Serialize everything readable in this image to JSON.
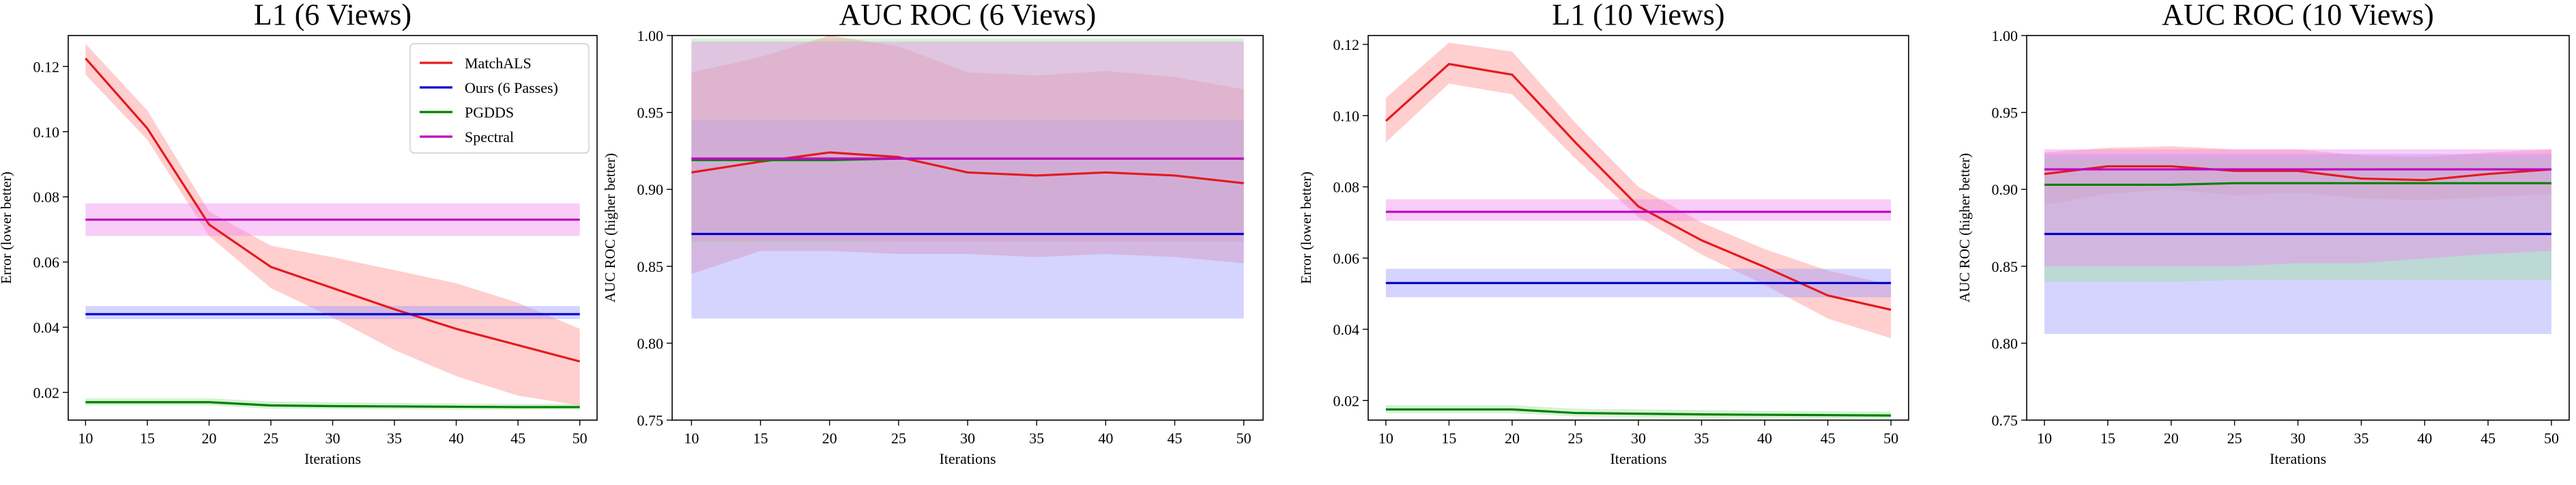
{
  "chart_data": [
    {
      "type": "line",
      "title": "L1 (6 Views)",
      "xlabel": "Iterations",
      "ylabel": "Error (lower better)",
      "x": [
        10,
        15,
        20,
        25,
        30,
        35,
        40,
        45,
        50
      ],
      "xlim": [
        8.6,
        51.4
      ],
      "ylim": [
        0.0115,
        0.1295
      ],
      "xticks": [
        10,
        15,
        20,
        25,
        30,
        35,
        40,
        45,
        50
      ],
      "yticks": [
        "0.02",
        "0.04",
        "0.06",
        "0.08",
        "0.10",
        "0.12"
      ],
      "legend": "top-right",
      "series": [
        {
          "name": "MatchALS",
          "color": "#e41a1c",
          "band_color": "#ff8a8a",
          "values": [
            0.1225,
            0.101,
            0.0715,
            0.0585,
            0.052,
            0.0455,
            0.0395,
            0.0345,
            0.0295
          ],
          "lower": [
            0.1175,
            0.0975,
            0.068,
            0.052,
            0.043,
            0.033,
            0.025,
            0.019,
            0.016
          ],
          "upper": [
            0.127,
            0.1065,
            0.0755,
            0.065,
            0.0615,
            0.0575,
            0.0535,
            0.0475,
            0.0395
          ]
        },
        {
          "name": "Ours (6 Passes)",
          "color": "#0000cc",
          "band_color": "#9999ff",
          "values": [
            0.044,
            0.044,
            0.044,
            0.044,
            0.044,
            0.044,
            0.044,
            0.044,
            0.044
          ],
          "lower": [
            0.0425,
            0.0425,
            0.0425,
            0.0425,
            0.0425,
            0.0425,
            0.0425,
            0.0425,
            0.0425
          ],
          "upper": [
            0.0465,
            0.0465,
            0.0465,
            0.0465,
            0.0465,
            0.0465,
            0.0465,
            0.0465,
            0.0465
          ]
        },
        {
          "name": "PGDDS",
          "color": "#008000",
          "band_color": "#9be09b",
          "values": [
            0.017,
            0.017,
            0.017,
            0.016,
            0.0158,
            0.0157,
            0.0156,
            0.0155,
            0.0155
          ],
          "lower": [
            0.016,
            0.016,
            0.016,
            0.015,
            0.0149,
            0.0148,
            0.0147,
            0.0147,
            0.0147
          ],
          "upper": [
            0.0182,
            0.0182,
            0.0182,
            0.0172,
            0.017,
            0.0168,
            0.0166,
            0.0165,
            0.0165
          ]
        },
        {
          "name": "Spectral",
          "color": "#c000c0",
          "band_color": "#ee88ee",
          "values": [
            0.073,
            0.073,
            0.073,
            0.073,
            0.073,
            0.073,
            0.073,
            0.073,
            0.073
          ],
          "lower": [
            0.068,
            0.068,
            0.068,
            0.068,
            0.068,
            0.068,
            0.068,
            0.068,
            0.068
          ],
          "upper": [
            0.078,
            0.078,
            0.078,
            0.078,
            0.078,
            0.078,
            0.078,
            0.078,
            0.078
          ]
        }
      ]
    },
    {
      "type": "line",
      "title": "AUC ROC (6 Views)",
      "xlabel": "Iterations",
      "ylabel": "AUC ROC (higher better)",
      "x": [
        10,
        15,
        20,
        25,
        30,
        35,
        40,
        45,
        50
      ],
      "xlim": [
        8.6,
        51.4
      ],
      "ylim": [
        0.75,
        1.0
      ],
      "xticks": [
        10,
        15,
        20,
        25,
        30,
        35,
        40,
        45,
        50
      ],
      "yticks": [
        "0.75",
        "0.80",
        "0.85",
        "0.90",
        "0.95",
        "1.00"
      ],
      "series": [
        {
          "name": "MatchALS",
          "color": "#e41a1c",
          "band_color": "#ff8a8a",
          "values": [
            0.911,
            0.918,
            0.924,
            0.921,
            0.911,
            0.909,
            0.911,
            0.909,
            0.904
          ],
          "lower": [
            0.845,
            0.86,
            0.86,
            0.858,
            0.858,
            0.856,
            0.858,
            0.856,
            0.852
          ],
          "upper": [
            0.976,
            0.986,
            1.0,
            0.993,
            0.976,
            0.974,
            0.977,
            0.973,
            0.965
          ]
        },
        {
          "name": "Ours (6 Passes)",
          "color": "#0000cc",
          "band_color": "#9999ff",
          "values": [
            0.871,
            0.871,
            0.871,
            0.871,
            0.871,
            0.871,
            0.871,
            0.871,
            0.871
          ],
          "lower": [
            0.816,
            0.816,
            0.816,
            0.816,
            0.816,
            0.816,
            0.816,
            0.816,
            0.816
          ],
          "upper": [
            0.945,
            0.945,
            0.945,
            0.945,
            0.945,
            0.945,
            0.945,
            0.945,
            0.945
          ]
        },
        {
          "name": "PGDDS",
          "color": "#008000",
          "band_color": "#9be09b",
          "values": [
            0.919,
            0.919,
            0.919,
            0.92,
            0.92,
            0.92,
            0.92,
            0.92,
            0.92
          ],
          "lower": [
            0.865,
            0.865,
            0.865,
            0.866,
            0.866,
            0.866,
            0.866,
            0.866,
            0.866
          ],
          "upper": [
            0.998,
            0.998,
            0.998,
            0.998,
            0.998,
            0.998,
            0.998,
            0.998,
            0.998
          ]
        },
        {
          "name": "Spectral",
          "color": "#c000c0",
          "band_color": "#ee88ee",
          "values": [
            0.92,
            0.92,
            0.92,
            0.92,
            0.92,
            0.92,
            0.92,
            0.92,
            0.92
          ],
          "lower": [
            0.866,
            0.866,
            0.866,
            0.866,
            0.866,
            0.866,
            0.866,
            0.866,
            0.866
          ],
          "upper": [
            0.996,
            0.996,
            0.996,
            0.996,
            0.996,
            0.996,
            0.996,
            0.996,
            0.996
          ]
        }
      ]
    },
    {
      "type": "line",
      "title": "L1 (10 Views)",
      "xlabel": "Iterations",
      "ylabel": "Error (lower better)",
      "x": [
        10,
        15,
        20,
        25,
        30,
        35,
        40,
        45,
        50
      ],
      "xlim": [
        8.6,
        51.4
      ],
      "ylim": [
        0.0145,
        0.1225
      ],
      "xticks": [
        10,
        15,
        20,
        25,
        30,
        35,
        40,
        45,
        50
      ],
      "yticks": [
        "0.02",
        "0.04",
        "0.06",
        "0.08",
        "0.10",
        "0.12"
      ],
      "series": [
        {
          "name": "MatchALS",
          "color": "#e41a1c",
          "band_color": "#ff8a8a",
          "values": [
            0.0985,
            0.1145,
            0.1115,
            0.0925,
            0.0745,
            0.065,
            0.0575,
            0.0495,
            0.0455
          ],
          "lower": [
            0.0925,
            0.109,
            0.106,
            0.088,
            0.0715,
            0.061,
            0.0525,
            0.043,
            0.0375
          ],
          "upper": [
            0.105,
            0.1205,
            0.118,
            0.098,
            0.08,
            0.07,
            0.0625,
            0.0565,
            0.0525
          ]
        },
        {
          "name": "Ours (6 Passes)",
          "color": "#0000cc",
          "band_color": "#9999ff",
          "values": [
            0.053,
            0.053,
            0.053,
            0.053,
            0.053,
            0.053,
            0.053,
            0.053,
            0.053
          ],
          "lower": [
            0.049,
            0.049,
            0.049,
            0.049,
            0.049,
            0.049,
            0.049,
            0.049,
            0.049
          ],
          "upper": [
            0.057,
            0.057,
            0.057,
            0.057,
            0.057,
            0.057,
            0.057,
            0.057,
            0.057
          ]
        },
        {
          "name": "PGDDS",
          "color": "#008000",
          "band_color": "#9be09b",
          "values": [
            0.0175,
            0.0175,
            0.0175,
            0.0165,
            0.0163,
            0.0161,
            0.016,
            0.0159,
            0.0158
          ],
          "lower": [
            0.0165,
            0.0165,
            0.0165,
            0.0155,
            0.0153,
            0.0151,
            0.015,
            0.0149,
            0.0148
          ],
          "upper": [
            0.0187,
            0.0187,
            0.0187,
            0.0177,
            0.0175,
            0.0173,
            0.0171,
            0.017,
            0.0169
          ]
        },
        {
          "name": "Spectral",
          "color": "#c000c0",
          "band_color": "#ee88ee",
          "values": [
            0.073,
            0.073,
            0.073,
            0.073,
            0.073,
            0.073,
            0.073,
            0.073,
            0.073
          ],
          "lower": [
            0.0705,
            0.0705,
            0.0705,
            0.0705,
            0.0705,
            0.0705,
            0.0705,
            0.0705,
            0.0705
          ],
          "upper": [
            0.0765,
            0.0765,
            0.0765,
            0.0765,
            0.0765,
            0.0765,
            0.0765,
            0.0765,
            0.0765
          ]
        }
      ]
    },
    {
      "type": "line",
      "title": "AUC ROC (10 Views)",
      "xlabel": "Iterations",
      "ylabel": "AUC ROC (higher better)",
      "x": [
        10,
        15,
        20,
        25,
        30,
        35,
        40,
        45,
        50
      ],
      "xlim": [
        8.6,
        51.4
      ],
      "ylim": [
        0.75,
        1.0
      ],
      "xticks": [
        10,
        15,
        20,
        25,
        30,
        35,
        40,
        45,
        50
      ],
      "yticks": [
        "0.75",
        "0.80",
        "0.85",
        "0.90",
        "0.95",
        "1.00"
      ],
      "series": [
        {
          "name": "MatchALS",
          "color": "#e41a1c",
          "band_color": "#ff8a8a",
          "values": [
            0.91,
            0.915,
            0.915,
            0.912,
            0.912,
            0.907,
            0.906,
            0.91,
            0.913
          ],
          "lower": [
            0.89,
            0.897,
            0.9,
            0.896,
            0.898,
            0.894,
            0.893,
            0.895,
            0.897
          ],
          "upper": [
            0.924,
            0.927,
            0.928,
            0.926,
            0.926,
            0.922,
            0.921,
            0.924,
            0.926
          ]
        },
        {
          "name": "Ours (6 Passes)",
          "color": "#0000cc",
          "band_color": "#9999ff",
          "values": [
            0.871,
            0.871,
            0.871,
            0.871,
            0.871,
            0.871,
            0.871,
            0.871,
            0.871
          ],
          "lower": [
            0.806,
            0.806,
            0.806,
            0.806,
            0.806,
            0.806,
            0.806,
            0.806,
            0.806
          ],
          "upper": [
            0.923,
            0.923,
            0.923,
            0.923,
            0.923,
            0.923,
            0.923,
            0.923,
            0.923
          ]
        },
        {
          "name": "PGDDS",
          "color": "#008000",
          "band_color": "#9be09b",
          "values": [
            0.903,
            0.903,
            0.903,
            0.904,
            0.904,
            0.904,
            0.904,
            0.904,
            0.904
          ],
          "lower": [
            0.84,
            0.84,
            0.84,
            0.841,
            0.841,
            0.841,
            0.841,
            0.841,
            0.841
          ],
          "upper": [
            0.92,
            0.92,
            0.92,
            0.92,
            0.92,
            0.92,
            0.92,
            0.92,
            0.92
          ]
        },
        {
          "name": "Spectral",
          "color": "#c000c0",
          "band_color": "#ee88ee",
          "values": [
            0.913,
            0.913,
            0.913,
            0.913,
            0.913,
            0.913,
            0.913,
            0.913,
            0.913
          ],
          "lower": [
            0.85,
            0.85,
            0.85,
            0.85,
            0.852,
            0.852,
            0.855,
            0.858,
            0.86
          ],
          "upper": [
            0.926,
            0.926,
            0.926,
            0.926,
            0.926,
            0.926,
            0.926,
            0.926,
            0.926
          ]
        }
      ]
    }
  ]
}
